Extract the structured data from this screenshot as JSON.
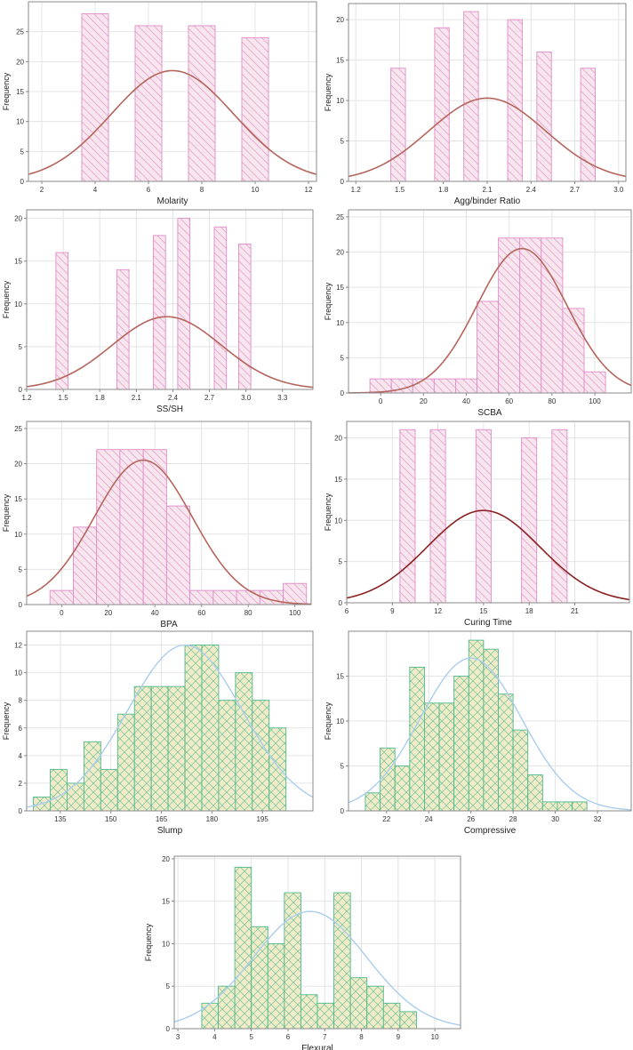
{
  "chart_data": [
    {
      "type": "bar",
      "style": "pink",
      "title": "",
      "xlabel": "Molarity",
      "ylabel": "Frequency",
      "xlim": [
        1.5,
        12.3
      ],
      "ylim": [
        0,
        30
      ],
      "xticks": [
        2,
        4,
        6,
        8,
        10,
        12
      ],
      "yticks": [
        0,
        5,
        10,
        15,
        20,
        25
      ],
      "bars": [
        {
          "x0": 3.5,
          "x1": 4.5,
          "value": 28
        },
        {
          "x0": 5.5,
          "x1": 6.5,
          "value": 26
        },
        {
          "x0": 7.5,
          "x1": 8.5,
          "value": 26
        },
        {
          "x0": 9.5,
          "x1": 10.5,
          "value": 24
        }
      ],
      "curve": {
        "mean": 6.9,
        "sd": 2.3,
        "peak": 18.5,
        "color": "#b5655c"
      }
    },
    {
      "type": "bar",
      "style": "pink",
      "title": "",
      "xlabel": "Agg/binder Ratio",
      "ylabel": "Frequency",
      "xlim": [
        1.15,
        3.05
      ],
      "ylim": [
        0,
        22
      ],
      "xticks": [
        1.2,
        1.5,
        1.8,
        2.1,
        2.4,
        2.7,
        3.0
      ],
      "xtick_labels": [
        "1.2",
        "1.5",
        "1.8",
        "2.1",
        "2.4",
        "2.7",
        "3.0"
      ],
      "yticks": [
        0,
        5,
        10,
        15,
        20
      ],
      "bars": [
        {
          "x0": 1.44,
          "x1": 1.54,
          "value": 14
        },
        {
          "x0": 1.74,
          "x1": 1.84,
          "value": 19
        },
        {
          "x0": 1.94,
          "x1": 2.04,
          "value": 21
        },
        {
          "x0": 2.24,
          "x1": 2.34,
          "value": 20
        },
        {
          "x0": 2.44,
          "x1": 2.54,
          "value": 16
        },
        {
          "x0": 2.74,
          "x1": 2.84,
          "value": 14
        }
      ],
      "curve": {
        "mean": 2.1,
        "sd": 0.4,
        "peak": 10.3,
        "color": "#b5655c"
      }
    },
    {
      "type": "bar",
      "style": "pink",
      "title": "",
      "xlabel": "SS/SH",
      "ylabel": "Frequency",
      "xlim": [
        1.2,
        3.55
      ],
      "ylim": [
        0,
        21
      ],
      "xticks": [
        1.2,
        1.5,
        1.8,
        2.1,
        2.4,
        2.7,
        3.0,
        3.3
      ],
      "xtick_labels": [
        "1.2",
        "1.5",
        "1.8",
        "2.1",
        "2.4",
        "2.7",
        "3.0",
        "3.3"
      ],
      "yticks": [
        0,
        5,
        10,
        15,
        20
      ],
      "bars": [
        {
          "x0": 1.44,
          "x1": 1.54,
          "value": 16
        },
        {
          "x0": 1.94,
          "x1": 2.04,
          "value": 14
        },
        {
          "x0": 2.24,
          "x1": 2.34,
          "value": 18
        },
        {
          "x0": 2.44,
          "x1": 2.54,
          "value": 20
        },
        {
          "x0": 2.74,
          "x1": 2.84,
          "value": 19
        },
        {
          "x0": 2.94,
          "x1": 3.04,
          "value": 17
        }
      ],
      "curve": {
        "mean": 2.35,
        "sd": 0.45,
        "peak": 8.5,
        "color": "#b5655c"
      }
    },
    {
      "type": "bar",
      "style": "pink",
      "title": "",
      "xlabel": "SCBA",
      "ylabel": "Frequency",
      "xlim": [
        -15,
        117
      ],
      "ylim": [
        0,
        26
      ],
      "xticks": [
        0,
        20,
        40,
        60,
        80,
        100
      ],
      "yticks": [
        0,
        5,
        10,
        15,
        20,
        25
      ],
      "bars": [
        {
          "x0": -5,
          "x1": 5,
          "value": 2
        },
        {
          "x0": 5,
          "x1": 15,
          "value": 2
        },
        {
          "x0": 15,
          "x1": 25,
          "value": 2
        },
        {
          "x0": 25,
          "x1": 35,
          "value": 2
        },
        {
          "x0": 35,
          "x1": 45,
          "value": 2
        },
        {
          "x0": 45,
          "x1": 55,
          "value": 13
        },
        {
          "x0": 55,
          "x1": 65,
          "value": 22
        },
        {
          "x0": 65,
          "x1": 75,
          "value": 22
        },
        {
          "x0": 75,
          "x1": 85,
          "value": 22
        },
        {
          "x0": 85,
          "x1": 95,
          "value": 12
        },
        {
          "x0": 95,
          "x1": 105,
          "value": 3
        }
      ],
      "curve": {
        "mean": 66,
        "sd": 21,
        "peak": 20.5,
        "color": "#b5655c"
      }
    },
    {
      "type": "bar",
      "style": "pink",
      "title": "",
      "xlabel": "BPA",
      "ylabel": "Frequency",
      "xlim": [
        -15,
        107
      ],
      "ylim": [
        0,
        26
      ],
      "xticks": [
        0,
        20,
        40,
        60,
        80,
        100
      ],
      "yticks": [
        0,
        5,
        10,
        15,
        20,
        25
      ],
      "bars": [
        {
          "x0": -5,
          "x1": 5,
          "value": 2
        },
        {
          "x0": 5,
          "x1": 15,
          "value": 11
        },
        {
          "x0": 15,
          "x1": 25,
          "value": 22
        },
        {
          "x0": 25,
          "x1": 35,
          "value": 22
        },
        {
          "x0": 35,
          "x1": 45,
          "value": 22
        },
        {
          "x0": 45,
          "x1": 55,
          "value": 14
        },
        {
          "x0": 55,
          "x1": 65,
          "value": 2
        },
        {
          "x0": 65,
          "x1": 75,
          "value": 2
        },
        {
          "x0": 75,
          "x1": 85,
          "value": 2
        },
        {
          "x0": 85,
          "x1": 95,
          "value": 2
        },
        {
          "x0": 95,
          "x1": 105,
          "value": 3
        }
      ],
      "curve": {
        "mean": 35,
        "sd": 21,
        "peak": 20.5,
        "color": "#b5655c"
      }
    },
    {
      "type": "bar",
      "style": "pink",
      "title": "",
      "xlabel": "Curing Time",
      "ylabel": "Frequency",
      "xlim": [
        6,
        24.6
      ],
      "ylim": [
        0,
        22
      ],
      "xticks": [
        6,
        9,
        12,
        15,
        18,
        21
      ],
      "yticks": [
        0,
        5,
        10,
        15,
        20
      ],
      "bars": [
        {
          "x0": 9.5,
          "x1": 10.5,
          "value": 21
        },
        {
          "x0": 11.5,
          "x1": 12.5,
          "value": 21
        },
        {
          "x0": 14.5,
          "x1": 15.5,
          "value": 21
        },
        {
          "x0": 17.5,
          "x1": 18.5,
          "value": 20
        },
        {
          "x0": 19.5,
          "x1": 20.5,
          "value": 21
        }
      ],
      "curve": {
        "mean": 15,
        "sd": 3.7,
        "peak": 11.2,
        "color": "#8b2020"
      }
    },
    {
      "type": "bar",
      "style": "green",
      "title": "",
      "xlabel": "Slump",
      "ylabel": "Frequency",
      "xlim": [
        125,
        210
      ],
      "ylim": [
        0,
        13
      ],
      "xticks": [
        135,
        150,
        165,
        180,
        195
      ],
      "yticks": [
        0,
        2,
        4,
        6,
        8,
        10,
        12
      ],
      "bars": [
        {
          "x0": 127,
          "x1": 132,
          "value": 1
        },
        {
          "x0": 132,
          "x1": 137,
          "value": 3
        },
        {
          "x0": 137,
          "x1": 142,
          "value": 2
        },
        {
          "x0": 142,
          "x1": 147,
          "value": 5
        },
        {
          "x0": 147,
          "x1": 152,
          "value": 3
        },
        {
          "x0": 152,
          "x1": 157,
          "value": 7
        },
        {
          "x0": 157,
          "x1": 162,
          "value": 9
        },
        {
          "x0": 162,
          "x1": 167,
          "value": 9
        },
        {
          "x0": 167,
          "x1": 172,
          "value": 9
        },
        {
          "x0": 172,
          "x1": 177,
          "value": 12
        },
        {
          "x0": 177,
          "x1": 182,
          "value": 12
        },
        {
          "x0": 182,
          "x1": 187,
          "value": 8
        },
        {
          "x0": 187,
          "x1": 192,
          "value": 10
        },
        {
          "x0": 192,
          "x1": 197,
          "value": 8
        },
        {
          "x0": 197,
          "x1": 202,
          "value": 6
        }
      ],
      "curve": {
        "mean": 172,
        "sd": 17,
        "peak": 12,
        "color": "#aacdee"
      }
    },
    {
      "type": "bar",
      "style": "green",
      "title": "",
      "xlabel": "Compressive",
      "ylabel": "Frequency",
      "xlim": [
        20.2,
        33.6
      ],
      "ylim": [
        0,
        20
      ],
      "xticks": [
        22,
        24,
        26,
        28,
        30,
        32
      ],
      "yticks": [
        0,
        5,
        10,
        15
      ],
      "bars": [
        {
          "x0": 21,
          "x1": 21.7,
          "value": 2
        },
        {
          "x0": 21.7,
          "x1": 22.4,
          "value": 7
        },
        {
          "x0": 22.4,
          "x1": 23.1,
          "value": 5
        },
        {
          "x0": 23.1,
          "x1": 23.8,
          "value": 16
        },
        {
          "x0": 23.8,
          "x1": 24.5,
          "value": 12
        },
        {
          "x0": 24.5,
          "x1": 25.2,
          "value": 12
        },
        {
          "x0": 25.2,
          "x1": 25.9,
          "value": 15
        },
        {
          "x0": 25.9,
          "x1": 26.6,
          "value": 19
        },
        {
          "x0": 26.6,
          "x1": 27.3,
          "value": 18
        },
        {
          "x0": 27.3,
          "x1": 28,
          "value": 13
        },
        {
          "x0": 28,
          "x1": 28.7,
          "value": 9
        },
        {
          "x0": 28.7,
          "x1": 29.4,
          "value": 4
        },
        {
          "x0": 29.4,
          "x1": 30.1,
          "value": 1
        },
        {
          "x0": 30.1,
          "x1": 30.8,
          "value": 1
        },
        {
          "x0": 30.8,
          "x1": 31.5,
          "value": 1
        }
      ],
      "curve": {
        "mean": 26,
        "sd": 2.4,
        "peak": 17,
        "color": "#aacdee"
      }
    },
    {
      "type": "bar",
      "style": "green",
      "title": "",
      "xlabel": "Flexural",
      "ylabel": "Frequency",
      "xlim": [
        2.9,
        10.7
      ],
      "ylim": [
        0,
        20.3
      ],
      "xticks": [
        3,
        4,
        5,
        6,
        7,
        8,
        9,
        10
      ],
      "yticks": [
        0,
        5,
        10,
        15,
        20
      ],
      "bars": [
        {
          "x0": 3.65,
          "x1": 4.1,
          "value": 3
        },
        {
          "x0": 4.1,
          "x1": 4.55,
          "value": 5
        },
        {
          "x0": 4.55,
          "x1": 5.0,
          "value": 19
        },
        {
          "x0": 5.0,
          "x1": 5.45,
          "value": 12
        },
        {
          "x0": 5.45,
          "x1": 5.9,
          "value": 10
        },
        {
          "x0": 5.9,
          "x1": 6.35,
          "value": 16
        },
        {
          "x0": 6.35,
          "x1": 6.8,
          "value": 4
        },
        {
          "x0": 6.8,
          "x1": 7.25,
          "value": 3
        },
        {
          "x0": 7.25,
          "x1": 7.7,
          "value": 16
        },
        {
          "x0": 7.7,
          "x1": 8.15,
          "value": 6
        },
        {
          "x0": 8.15,
          "x1": 8.6,
          "value": 5
        },
        {
          "x0": 8.6,
          "x1": 9.05,
          "value": 3
        },
        {
          "x0": 9.05,
          "x1": 9.5,
          "value": 2
        }
      ],
      "curve": {
        "mean": 6.6,
        "sd": 1.55,
        "peak": 13.8,
        "color": "#aacdee"
      }
    }
  ]
}
